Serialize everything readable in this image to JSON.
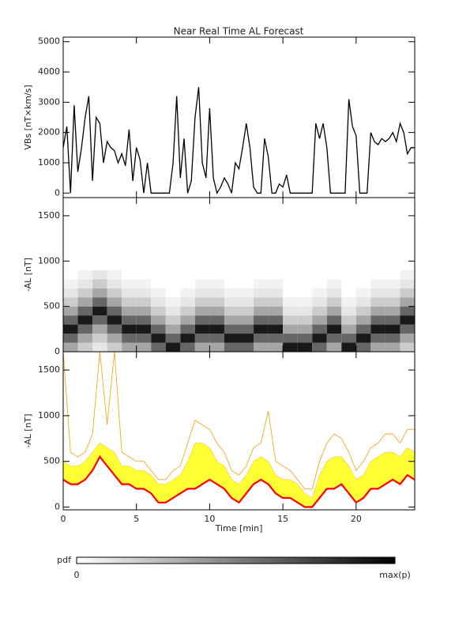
{
  "chart_data": [
    {
      "type": "line",
      "title": "Near Real Time AL Forecast",
      "ylabel": "VBs [nT×km/s]",
      "color": "#000000",
      "xlim": [
        0,
        24
      ],
      "xticks": [
        0,
        5,
        10,
        15,
        20
      ],
      "ylim": [
        -150,
        5150
      ],
      "yticks": [
        0,
        1000,
        2000,
        3000,
        4000,
        5000
      ],
      "x": [
        0,
        0.25,
        0.5,
        0.75,
        1,
        1.25,
        1.5,
        1.75,
        2,
        2.25,
        2.5,
        2.75,
        3,
        3.25,
        3.5,
        3.75,
        4,
        4.25,
        4.5,
        4.75,
        5,
        5.25,
        5.5,
        5.75,
        6,
        6.25,
        6.5,
        6.75,
        7,
        7.25,
        7.5,
        7.75,
        8,
        8.25,
        8.5,
        8.75,
        9,
        9.25,
        9.5,
        9.75,
        10,
        10.25,
        10.5,
        10.75,
        11,
        11.25,
        11.5,
        11.75,
        12,
        12.25,
        12.5,
        12.75,
        13,
        13.25,
        13.5,
        13.75,
        14,
        14.25,
        14.5,
        14.75,
        15,
        15.25,
        15.5,
        15.75,
        16,
        16.25,
        16.5,
        16.75,
        17,
        17.25,
        17.5,
        17.75,
        18,
        18.25,
        18.5,
        18.75,
        19,
        19.25,
        19.5,
        19.75,
        20,
        20.25,
        20.5,
        20.75,
        21,
        21.25,
        21.5,
        21.75,
        22,
        22.25,
        22.5,
        22.75,
        23,
        23.25,
        23.5,
        23.75,
        24
      ],
      "values": [
        1500,
        2200,
        0,
        2900,
        700,
        1500,
        2500,
        3200,
        400,
        2500,
        2300,
        1000,
        1700,
        1500,
        1400,
        1000,
        1300,
        900,
        2100,
        400,
        1500,
        1100,
        0,
        1000,
        0,
        0,
        0,
        0,
        0,
        0,
        1000,
        3200,
        500,
        1800,
        0,
        400,
        2500,
        3500,
        1000,
        500,
        2800,
        500,
        0,
        200,
        500,
        300,
        0,
        1000,
        800,
        1500,
        2300,
        1500,
        200,
        0,
        0,
        1800,
        1200,
        0,
        0,
        300,
        200,
        600,
        0,
        0,
        0,
        0,
        0,
        0,
        0,
        2300,
        1800,
        2300,
        1500,
        0,
        0,
        0,
        0,
        0,
        3100,
        2200,
        1900,
        0,
        0,
        0,
        2000,
        1700,
        1600,
        1800,
        1700,
        1800,
        2000,
        1700,
        2300,
        2000,
        1300,
        1500,
        1500
      ]
    },
    {
      "type": "heatmap",
      "ylabel": "-AL [nT]",
      "xlim": [
        0,
        24
      ],
      "xticks": [
        0,
        5,
        10,
        15,
        20
      ],
      "ylim": [
        0,
        1700
      ],
      "yticks": [
        0,
        500,
        1000,
        1500
      ],
      "xbins": [
        0,
        1,
        2,
        3,
        4,
        5,
        6,
        7,
        8,
        9,
        10,
        11,
        12,
        13,
        14,
        15,
        16,
        17,
        18,
        19,
        20,
        21,
        22,
        23,
        24
      ],
      "ybins": [
        0,
        100,
        200,
        300,
        400,
        500,
        600,
        700,
        800,
        900
      ],
      "z": [
        [
          0.35,
          0.6,
          0.9,
          0.6,
          0.35,
          0.2,
          0.1,
          0.05,
          0
        ],
        [
          0.2,
          0.35,
          0.6,
          0.9,
          0.6,
          0.35,
          0.2,
          0.1,
          0.05
        ],
        [
          0.1,
          0.2,
          0.35,
          0.6,
          0.9,
          0.6,
          0.35,
          0.2,
          0.1
        ],
        [
          0.2,
          0.35,
          0.6,
          0.9,
          0.6,
          0.35,
          0.2,
          0.1,
          0.05
        ],
        [
          0.35,
          0.6,
          0.9,
          0.6,
          0.35,
          0.2,
          0.1,
          0.05,
          0
        ],
        [
          0.35,
          0.6,
          0.9,
          0.6,
          0.35,
          0.2,
          0.1,
          0.05,
          0
        ],
        [
          0.6,
          0.9,
          0.6,
          0.35,
          0.2,
          0.1,
          0.05,
          0,
          0
        ],
        [
          0.9,
          0.6,
          0.35,
          0.2,
          0.1,
          0.05,
          0,
          0,
          0
        ],
        [
          0.6,
          0.9,
          0.6,
          0.35,
          0.2,
          0.1,
          0.05,
          0,
          0
        ],
        [
          0.35,
          0.6,
          0.9,
          0.6,
          0.35,
          0.2,
          0.1,
          0.05,
          0
        ],
        [
          0.35,
          0.6,
          0.9,
          0.6,
          0.35,
          0.2,
          0.1,
          0.05,
          0
        ],
        [
          0.6,
          0.9,
          0.6,
          0.35,
          0.2,
          0.1,
          0.05,
          0,
          0
        ],
        [
          0.6,
          0.9,
          0.6,
          0.35,
          0.2,
          0.1,
          0.05,
          0,
          0
        ],
        [
          0.35,
          0.6,
          0.9,
          0.6,
          0.35,
          0.2,
          0.1,
          0.05,
          0
        ],
        [
          0.35,
          0.6,
          0.9,
          0.6,
          0.35,
          0.2,
          0.1,
          0.05,
          0
        ],
        [
          0.9,
          0.6,
          0.35,
          0.2,
          0.1,
          0.05,
          0,
          0,
          0
        ],
        [
          0.9,
          0.6,
          0.35,
          0.2,
          0.1,
          0.05,
          0,
          0,
          0
        ],
        [
          0.6,
          0.9,
          0.6,
          0.35,
          0.2,
          0.1,
          0.05,
          0,
          0
        ],
        [
          0.35,
          0.6,
          0.9,
          0.6,
          0.35,
          0.2,
          0.1,
          0.05,
          0
        ],
        [
          0.9,
          0.6,
          0.35,
          0.2,
          0.1,
          0.05,
          0,
          0,
          0
        ],
        [
          0.6,
          0.9,
          0.6,
          0.35,
          0.2,
          0.1,
          0.05,
          0,
          0
        ],
        [
          0.35,
          0.6,
          0.9,
          0.6,
          0.35,
          0.2,
          0.1,
          0.05,
          0
        ],
        [
          0.35,
          0.6,
          0.9,
          0.6,
          0.35,
          0.2,
          0.1,
          0.05,
          0
        ],
        [
          0.2,
          0.35,
          0.6,
          0.9,
          0.6,
          0.35,
          0.2,
          0.1,
          0.05
        ]
      ]
    },
    {
      "type": "line",
      "ylabel": "-AL [nT]",
      "xlabel": "Time [min]",
      "xlim": [
        0,
        24
      ],
      "xticks": [
        0,
        5,
        10,
        15,
        20
      ],
      "ylim": [
        -30,
        1700
      ],
      "yticks": [
        0,
        500,
        1000,
        1500
      ],
      "x": [
        0,
        0.5,
        1,
        1.5,
        2,
        2.5,
        3,
        3.5,
        4,
        4.5,
        5,
        5.5,
        6,
        6.5,
        7,
        7.5,
        8,
        8.5,
        9,
        9.5,
        10,
        10.5,
        11,
        11.5,
        12,
        12.5,
        13,
        13.5,
        14,
        14.5,
        15,
        15.5,
        16,
        16.5,
        17,
        17.5,
        18,
        18.5,
        19,
        19.5,
        20,
        20.5,
        21,
        21.5,
        22,
        22.5,
        23,
        23.5,
        24
      ],
      "series": [
        {
          "color": "#ff0000",
          "values": [
            300,
            250,
            250,
            300,
            400,
            550,
            450,
            350,
            250,
            250,
            200,
            200,
            150,
            50,
            50,
            100,
            150,
            200,
            200,
            250,
            300,
            250,
            200,
            100,
            50,
            150,
            250,
            300,
            250,
            150,
            100,
            100,
            50,
            0,
            0,
            100,
            200,
            200,
            250,
            150,
            50,
            100,
            200,
            200,
            250,
            300,
            250,
            350,
            300
          ]
        },
        {
          "color": "#ffff33",
          "fill": "between",
          "values": [
            500,
            450,
            450,
            500,
            600,
            700,
            650,
            600,
            450,
            450,
            400,
            400,
            350,
            250,
            250,
            300,
            350,
            500,
            700,
            700,
            650,
            500,
            450,
            300,
            250,
            350,
            500,
            550,
            500,
            350,
            300,
            300,
            250,
            150,
            100,
            350,
            500,
            550,
            550,
            450,
            300,
            350,
            500,
            550,
            600,
            600,
            550,
            650,
            600
          ]
        },
        {
          "color": "#f5a623",
          "values": [
            1700,
            600,
            550,
            600,
            800,
            1700,
            900,
            1700,
            600,
            550,
            500,
            500,
            400,
            300,
            300,
            400,
            450,
            700,
            950,
            900,
            850,
            700,
            600,
            400,
            350,
            450,
            650,
            700,
            1050,
            500,
            450,
            400,
            300,
            200,
            200,
            500,
            700,
            800,
            750,
            600,
            400,
            500,
            650,
            700,
            800,
            800,
            700,
            850,
            850
          ]
        }
      ]
    }
  ],
  "colorbar": {
    "label": "pdf",
    "min_label": "0",
    "max_label": "max(p)"
  }
}
